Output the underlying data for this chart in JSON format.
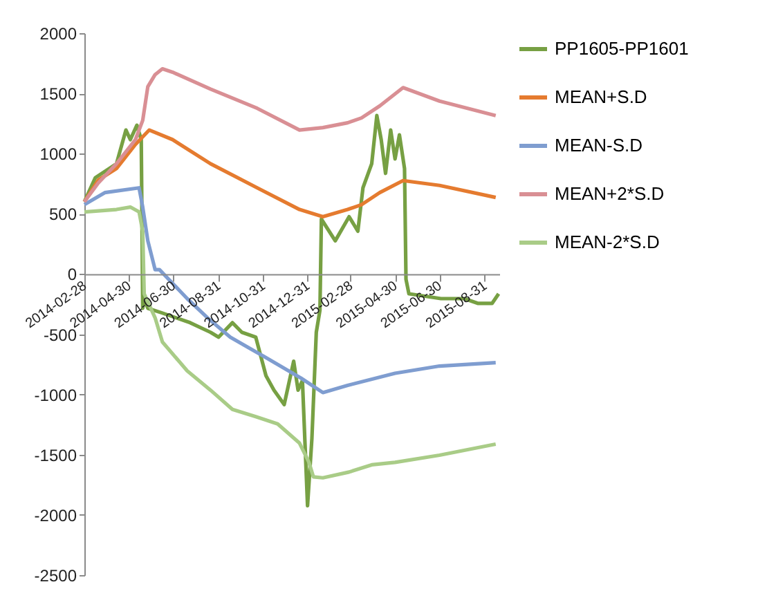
{
  "chart_data": {
    "type": "line",
    "legend": "right",
    "grid": false,
    "marker": "none",
    "line_style": "solid",
    "xlim": [
      "2014-02-28",
      "2015-09-20"
    ],
    "xticks": [
      "2014-02-28",
      "2014-04-30",
      "2014-06-30",
      "2014-08-31",
      "2014-10-31",
      "2014-12-31",
      "2015-02-28",
      "2015-04-30",
      "2015-06-30",
      "2015-08-31"
    ],
    "ylim": [
      -2500,
      2000
    ],
    "yticks": [
      -2500,
      -2000,
      -1500,
      -1000,
      -500,
      0,
      500,
      1000,
      1500,
      2000
    ],
    "series": [
      {
        "name": "PP1605-PP1601",
        "color": "#77a043",
        "x": [
          "2014-02-28",
          "2014-03-15",
          "2014-04-13",
          "2014-04-26",
          "2014-05-02",
          "2014-05-11",
          "2014-05-17",
          "2014-05-19",
          "2014-05-21",
          "2014-05-26",
          "2014-06-15",
          "2014-07-04",
          "2014-07-23",
          "2014-08-20",
          "2014-08-31",
          "2014-09-19",
          "2014-10-02",
          "2014-10-21",
          "2014-11-04",
          "2014-11-15",
          "2014-11-29",
          "2014-12-12",
          "2014-12-18",
          "2014-12-24",
          "2014-12-31",
          "2015-01-06",
          "2015-01-12",
          "2015-01-17",
          "2015-01-19",
          "2015-02-07",
          "2015-02-26",
          "2015-03-10",
          "2015-03-17",
          "2015-03-29",
          "2015-04-05",
          "2015-04-11",
          "2015-04-17",
          "2015-04-24",
          "2015-04-30",
          "2015-05-06",
          "2015-05-13",
          "2015-05-15",
          "2015-05-19",
          "2015-07-02",
          "2015-08-03",
          "2015-08-22",
          "2015-09-10",
          "2015-09-19"
        ],
        "values": [
          600,
          800,
          916,
          1196,
          1116,
          1236,
          1116,
          -284,
          -204,
          -284,
          -324,
          -364,
          -404,
          -484,
          -524,
          -404,
          -484,
          -524,
          -844,
          -964,
          -1084,
          -724,
          -964,
          -884,
          -1924,
          -1364,
          -484,
          -300,
          456,
          276,
          476,
          356,
          716,
          916,
          1316,
          1116,
          836,
          1196,
          956,
          1156,
          876,
          -44,
          -164,
          -204,
          -204,
          -244,
          -244,
          -164
        ]
      },
      {
        "name": "MEAN+S.D",
        "color": "#e57b2f",
        "x": [
          "2014-02-28",
          "2014-03-19",
          "2014-04-13",
          "2014-05-09",
          "2014-05-28",
          "2014-06-29",
          "2014-08-20",
          "2014-10-23",
          "2014-12-20",
          "2015-01-21",
          "2015-02-24",
          "2015-03-15",
          "2015-04-09",
          "2015-05-11",
          "2015-06-30",
          "2015-09-15"
        ],
        "values": [
          600,
          780,
          876,
          1076,
          1196,
          1116,
          916,
          716,
          536,
          476,
          536,
          576,
          676,
          776,
          736,
          636
        ]
      },
      {
        "name": "MEAN-S.D",
        "color": "#7f9dd0",
        "x": [
          "2014-02-28",
          "2014-03-28",
          "2014-05-14",
          "2014-05-19",
          "2014-05-26",
          "2014-06-05",
          "2014-06-11",
          "2014-07-19",
          "2014-08-16",
          "2014-09-16",
          "2014-11-01",
          "2014-12-22",
          "2015-01-21",
          "2015-02-24",
          "2015-04-30",
          "2015-06-30",
          "2015-09-15"
        ],
        "values": [
          576,
          676,
          716,
          556,
          276,
          36,
          36,
          -204,
          -364,
          -524,
          -684,
          -864,
          -984,
          -924,
          -824,
          -764,
          -736
        ]
      },
      {
        "name": "MEAN+2*S.D",
        "color": "#d98f94",
        "x": [
          "2014-02-28",
          "2014-03-19",
          "2014-04-13",
          "2014-05-09",
          "2014-05-19",
          "2014-05-26",
          "2014-06-05",
          "2014-06-15",
          "2014-06-29",
          "2014-08-20",
          "2014-10-23",
          "2014-12-20",
          "2015-01-21",
          "2015-02-24",
          "2015-03-15",
          "2015-04-09",
          "2015-05-11",
          "2015-06-30",
          "2015-09-15"
        ],
        "values": [
          600,
          756,
          916,
          1116,
          1276,
          1556,
          1656,
          1704,
          1676,
          1536,
          1376,
          1196,
          1216,
          1256,
          1296,
          1396,
          1548,
          1436,
          1316
        ]
      },
      {
        "name": "MEAN-2*S.D",
        "color": "#a9cc87",
        "x": [
          "2014-02-28",
          "2014-04-13",
          "2014-05-02",
          "2014-05-14",
          "2014-05-19",
          "2014-05-21",
          "2014-06-05",
          "2014-06-15",
          "2014-07-19",
          "2014-08-20",
          "2014-09-19",
          "2014-10-21",
          "2014-11-20",
          "2014-12-20",
          "2015-01-02",
          "2015-01-08",
          "2015-01-21",
          "2015-02-26",
          "2015-03-29",
          "2015-04-30",
          "2015-06-30",
          "2015-09-15"
        ],
        "values": [
          516,
          536,
          556,
          516,
          356,
          -164,
          -364,
          -564,
          -804,
          -964,
          -1124,
          -1184,
          -1244,
          -1404,
          -1564,
          -1684,
          -1692,
          -1644,
          -1584,
          -1564,
          -1504,
          -1412
        ]
      }
    ]
  }
}
